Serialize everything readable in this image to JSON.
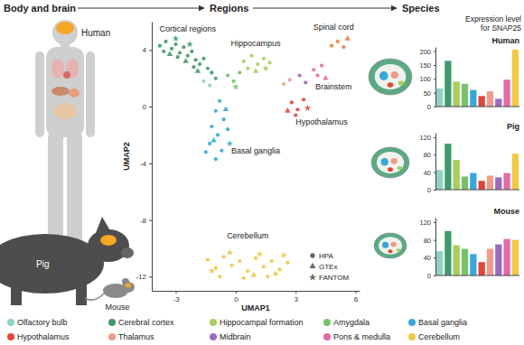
{
  "header": {
    "steps": [
      "Body and brain",
      "Regions",
      "Species"
    ],
    "organisms": [
      "Human",
      "Pig",
      "Mouse"
    ],
    "expression_heading": [
      "Expression level",
      "for SNAP25"
    ]
  },
  "chart_data": [
    {
      "type": "scatter",
      "xlabel": "UMAP1",
      "ylabel": "UMAP2",
      "xlim": [
        -4.2,
        6.2
      ],
      "ylim": [
        -13,
        6
      ],
      "xticks": [
        -3,
        0,
        3,
        6
      ],
      "yticks": [
        -12,
        -8,
        -4,
        0,
        4
      ],
      "legend": "lower right",
      "annotations": [
        {
          "text": "Cortical regions",
          "x": -2.4,
          "y": 5.3
        },
        {
          "text": "Hippocampus",
          "x": 1.0,
          "y": 4.3
        },
        {
          "text": "Spinal cord",
          "x": 4.9,
          "y": 5.4
        },
        {
          "text": "Brainstem",
          "x": 4.9,
          "y": 1.2
        },
        {
          "text": "Hypothalamus",
          "x": 4.3,
          "y": -1.3
        },
        {
          "text": "Basal ganglia",
          "x": 1.0,
          "y": -3.3
        },
        {
          "text": "Cerebellum",
          "x": 0.6,
          "y": -9.3
        }
      ],
      "series": [
        {
          "name": "HPA",
          "marker": "circle",
          "x": [
            -3.8,
            -3.5,
            -3.2,
            -3.0,
            -2.8,
            -2.6,
            -2.4,
            -2.2,
            -2.0,
            -1.8,
            -1.6,
            -1.4,
            -1.2,
            -3.6,
            -2.9,
            -2.1,
            -1.0,
            -1.6,
            -1.3,
            -0.4,
            -0.1,
            0.2,
            0.4,
            0.8,
            1.1,
            1.4,
            0.6,
            1.7,
            -0.8,
            -1.0,
            -0.6,
            -1.2,
            -0.9,
            -1.3,
            -0.7,
            -1.0,
            -0.4,
            -1.5,
            2.4,
            2.7,
            3.2,
            3.5,
            3.9,
            4.3,
            4.1,
            4.8,
            5.1,
            5.4,
            2.8,
            3.1,
            3.4,
            3.0,
            -1.4,
            -1.0,
            -0.6,
            -0.2,
            0.2,
            0.6,
            1.0,
            1.4,
            1.8,
            2.2,
            2.6,
            -0.8,
            0.4,
            1.6
          ],
          "y": [
            4.3,
            4.6,
            4.1,
            4.4,
            3.8,
            4.2,
            3.6,
            3.9,
            3.3,
            3.0,
            3.4,
            2.7,
            2.4,
            3.9,
            3.5,
            2.8,
            2.0,
            1.8,
            1.5,
            2.2,
            1.8,
            2.4,
            3.2,
            3.6,
            3.0,
            3.4,
            2.7,
            3.1,
            0.4,
            -0.3,
            -0.9,
            -1.4,
            -2.0,
            -2.6,
            -3.1,
            -3.7,
            -1.6,
            -3.2,
            1.6,
            1.9,
            2.2,
            1.7,
            2.6,
            2.9,
            2.2,
            4.3,
            4.6,
            4.2,
            0.3,
            -0.2,
            0.5,
            -0.6,
            -10.8,
            -11.4,
            -10.6,
            -11.2,
            -10.9,
            -11.6,
            -10.7,
            -11.3,
            -10.9,
            -11.5,
            -11.0,
            -12.0,
            -12.1,
            -12.0
          ],
          "colors": [
            "#3f9a6e",
            "#3f9a6e",
            "#3f9a6e",
            "#3f9a6e",
            "#3f9a6e",
            "#3f9a6e",
            "#3f9a6e",
            "#3f9a6e",
            "#3f9a6e",
            "#3f9a6e",
            "#3f9a6e",
            "#3f9a6e",
            "#3f9a6e",
            "#3f9a6e",
            "#3f9a6e",
            "#3f9a6e",
            "#3f9a6e",
            "#8fd3c8",
            "#8fd3c8",
            "#78c26d",
            "#78c26d",
            "#78c26d",
            "#a6cf5a",
            "#a6cf5a",
            "#a6cf5a",
            "#a6cf5a",
            "#a6cf5a",
            "#a6cf5a",
            "#3aa7d9",
            "#3aa7d9",
            "#3aa7d9",
            "#3aa7d9",
            "#3aa7d9",
            "#3aa7d9",
            "#3aa7d9",
            "#3aa7d9",
            "#3aa7d9",
            "#3aa7d9",
            "#f09a8a",
            "#f09a8a",
            "#9b6bc2",
            "#9b6bc2",
            "#e26aa8",
            "#e26aa8",
            "#e26aa8",
            "#e8823a",
            "#e8823a",
            "#e8823a",
            "#e2453a",
            "#e2453a",
            "#e2453a",
            "#e2453a",
            "#f2c744",
            "#f2c744",
            "#f2c744",
            "#f2c744",
            "#f2c744",
            "#f2c744",
            "#f2c744",
            "#f2c744",
            "#f2c744",
            "#f2c744",
            "#f2c744",
            "#f2c744",
            "#f2c744",
            "#f2c744"
          ]
        },
        {
          "name": "GTEx",
          "marker": "triangle",
          "x": [
            -3.3,
            -2.5,
            -1.9,
            1.0,
            -0.5,
            -1.1,
            2.6,
            4.5,
            5.6,
            -0.3,
            2.0,
            0.9
          ],
          "y": [
            3.7,
            3.2,
            2.5,
            2.5,
            -0.2,
            -2.4,
            -0.3,
            2.0,
            4.8,
            -10.3,
            -11.8,
            -11.9
          ],
          "colors": [
            "#3f9a6e",
            "#3f9a6e",
            "#3f9a6e",
            "#a6cf5a",
            "#3aa7d9",
            "#3aa7d9",
            "#e2453a",
            "#e26aa8",
            "#e8823a",
            "#f2c744",
            "#f2c744",
            "#f2c744"
          ]
        },
        {
          "name": "FANTOM",
          "marker": "star",
          "x": [
            -3.0,
            -2.3,
            1.5,
            -0.3,
            3.6,
            -1.2,
            1.2,
            2.4,
            0.0
          ],
          "y": [
            4.8,
            4.4,
            2.7,
            -2.6,
            -0.1,
            -11.6,
            -10.4,
            -10.5,
            1.4
          ],
          "colors": [
            "#3f9a6e",
            "#3f9a6e",
            "#a6cf5a",
            "#3aa7d9",
            "#e2453a",
            "#f2c744",
            "#f2c744",
            "#f2c744",
            "#78c26d"
          ]
        }
      ]
    },
    {
      "type": "bar",
      "title": "Human",
      "tick_labels": "y",
      "categories": [
        "Olfactory bulb",
        "Cerebral cortex",
        "Hippocampal formation",
        "Amygdala",
        "Basal ganglia",
        "Hypothalamus",
        "Thalamus",
        "Midbrain",
        "Pons & medulla",
        "Cerebellum"
      ],
      "values": [
        65,
        165,
        90,
        82,
        60,
        38,
        55,
        28,
        97,
        205
      ],
      "colors": [
        "#8fd3c8",
        "#3f9a6e",
        "#a6cf5a",
        "#78c26d",
        "#3aa7d9",
        "#e2453a",
        "#f09a8a",
        "#9b6bc2",
        "#e26aa8",
        "#f2c744"
      ],
      "ylim": [
        0,
        215
      ],
      "yticks": [
        0,
        50,
        100,
        150,
        200
      ]
    },
    {
      "type": "bar",
      "title": "Pig",
      "tick_labels": "y",
      "categories": [
        "Olfactory bulb",
        "Cerebral cortex",
        "Hippocampal formation",
        "Amygdala",
        "Basal ganglia",
        "Hypothalamus",
        "Thalamus",
        "Midbrain",
        "Pons & medulla",
        "Cerebellum"
      ],
      "values": [
        45,
        105,
        68,
        30,
        38,
        20,
        32,
        28,
        38,
        82
      ],
      "colors": [
        "#8fd3c8",
        "#3f9a6e",
        "#a6cf5a",
        "#78c26d",
        "#3aa7d9",
        "#e2453a",
        "#f09a8a",
        "#9b6bc2",
        "#e26aa8",
        "#f2c744"
      ],
      "ylim": [
        0,
        130
      ],
      "yticks": [
        0,
        40,
        80,
        120
      ]
    },
    {
      "type": "bar",
      "title": "Mouse",
      "tick_labels": "y",
      "categories": [
        "Olfactory bulb",
        "Cerebral cortex",
        "Hippocampal formation",
        "Amygdala",
        "Basal ganglia",
        "Hypothalamus",
        "Thalamus",
        "Midbrain",
        "Pons & medulla",
        "Cerebellum"
      ],
      "values": [
        55,
        100,
        68,
        60,
        48,
        30,
        60,
        70,
        82,
        80
      ],
      "colors": [
        "#8fd3c8",
        "#3f9a6e",
        "#a6cf5a",
        "#78c26d",
        "#3aa7d9",
        "#e2453a",
        "#f09a8a",
        "#9b6bc2",
        "#e26aa8",
        "#f2c744"
      ],
      "ylim": [
        0,
        130
      ],
      "yticks": [
        0,
        40,
        80,
        120
      ]
    }
  ]
}
